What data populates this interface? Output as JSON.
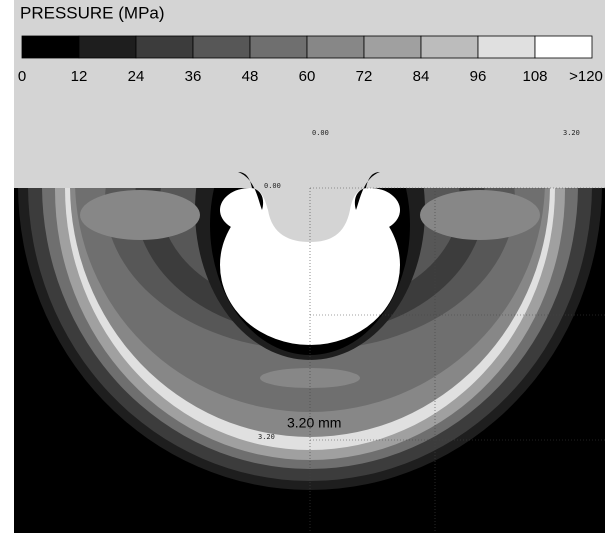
{
  "legend": {
    "title": "PRESSURE (MPa)",
    "labels": [
      "0",
      "12",
      "24",
      "36",
      "48",
      "60",
      "72",
      "84",
      "96",
      "108",
      ">120"
    ],
    "colors": [
      "#000000",
      "#1e1e1e",
      "#3c3c3c",
      "#575757",
      "#6f6f6f",
      "#878787",
      "#a0a0a0",
      "#bcbcbc",
      "#e0e0e0",
      "#ffffff"
    ]
  },
  "annotations": [
    "0.00",
    "3.20",
    "0.00",
    "3.20",
    "3.20 mm"
  ]
}
